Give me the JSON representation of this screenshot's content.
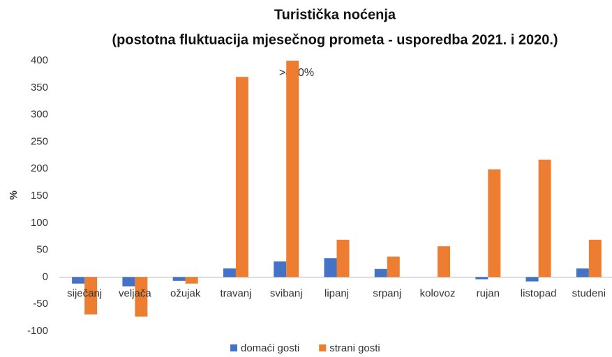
{
  "chart_data": {
    "type": "bar",
    "title": "Turistička noćenja",
    "subtitle": "(postotna fluktuacija  mjesečnog prometa - usporedba 2021. i 2020.)",
    "ylabel": "%",
    "annotation": ">400%",
    "categories": [
      "siječanj",
      "veljača",
      "ožujak",
      "travanj",
      "svibanj",
      "lipanj",
      "srpanj",
      "kolovoz",
      "rujan",
      "listopad",
      "studeni"
    ],
    "series": [
      {
        "name": "domaći gosti",
        "color": "#4472c4",
        "values": [
          -12,
          -17,
          -7,
          16,
          29,
          35,
          15,
          0,
          -4,
          -8,
          16
        ]
      },
      {
        "name": "strani gosti",
        "color": "#ed7d31",
        "values": [
          -69,
          -73,
          -12,
          370,
          400,
          69,
          38,
          57,
          199,
          217,
          69
        ]
      }
    ],
    "ylim": [
      -100,
      400
    ],
    "yticks": [
      -100,
      -50,
      0,
      50,
      100,
      150,
      200,
      250,
      300,
      350,
      400
    ],
    "grid": false
  }
}
